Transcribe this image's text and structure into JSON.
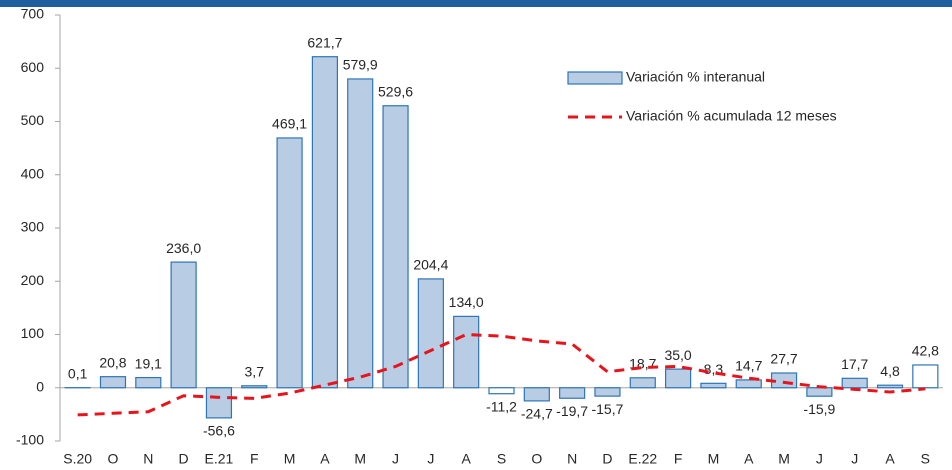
{
  "chart_data": {
    "type": "bar-line",
    "categories": [
      "S.20",
      "O",
      "N",
      "D",
      "E.21",
      "F",
      "M",
      "A",
      "M",
      "J",
      "J",
      "A",
      "S",
      "O",
      "N",
      "D",
      "E.22",
      "F",
      "M",
      "A",
      "M",
      "J",
      "J",
      "A",
      "S"
    ],
    "series": [
      {
        "name": "Variación % interanual",
        "type": "bar",
        "color": "#b8cce4",
        "edge_color": "#2e75b6",
        "colors": [
          "#b8cce4",
          "#b8cce4",
          "#b8cce4",
          "#b8cce4",
          "#b8cce4",
          "#b8cce4",
          "#b8cce4",
          "#b8cce4",
          "#b8cce4",
          "#b8cce4",
          "#b8cce4",
          "#b8cce4",
          "#ffffff",
          "#b8cce4",
          "#b8cce4",
          "#b8cce4",
          "#b8cce4",
          "#b8cce4",
          "#b8cce4",
          "#b8cce4",
          "#b8cce4",
          "#b8cce4",
          "#b8cce4",
          "#b8cce4",
          "#ffffff"
        ],
        "values": [
          0.1,
          20.8,
          19.1,
          236.0,
          -56.6,
          3.7,
          469.1,
          621.7,
          579.9,
          529.6,
          204.4,
          134.0,
          -11.2,
          -24.7,
          -19.7,
          -15.7,
          18.7,
          35.0,
          8.3,
          14.7,
          27.7,
          -15.9,
          17.7,
          4.8,
          42.8
        ],
        "value_labels": [
          "0,1",
          "20,8",
          "19,1",
          "236,0",
          "-56,6",
          "3,7",
          "469,1",
          "621,7",
          "579,9",
          "529,6",
          "204,4",
          "134,0",
          "-11,2",
          "-24,7",
          "-19,7",
          "-15,7",
          "18,7",
          "35,0",
          "8,3",
          "14,7",
          "27,7",
          "-15,9",
          "17,7",
          "4,8",
          "42,8"
        ]
      },
      {
        "name": "Variación % acumulada 12 meses",
        "type": "line",
        "color": "#e8141b",
        "dashed": true,
        "values": [
          -51,
          -48,
          -45,
          -15,
          -18,
          -20,
          -10,
          5,
          20,
          40,
          70,
          100,
          97,
          88,
          82,
          30,
          38,
          40,
          28,
          18,
          10,
          2,
          -3,
          -8,
          -2
        ]
      }
    ],
    "ylim": [
      -100,
      700
    ],
    "yticks": [
      -100,
      0,
      100,
      200,
      300,
      400,
      500,
      600,
      700
    ]
  }
}
